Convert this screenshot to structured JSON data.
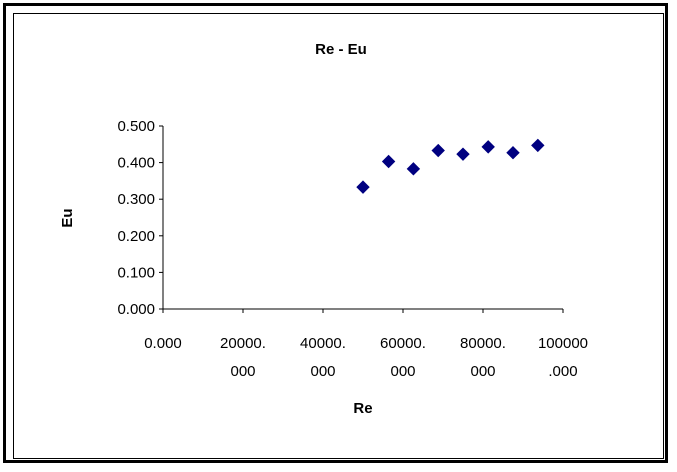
{
  "chart_data": {
    "type": "scatter",
    "title": "Re - Eu",
    "xlabel": "Re",
    "ylabel": "Eu",
    "xlim": [
      0,
      100000
    ],
    "ylim": [
      0,
      0.5
    ],
    "grid": false,
    "legend": "none",
    "marker": "diamond",
    "marker_color": "#000080",
    "x_ticks": [
      {
        "value": 0,
        "line1": "0.000",
        "line2": ""
      },
      {
        "value": 20000,
        "line1": "20000.",
        "line2": "000"
      },
      {
        "value": 40000,
        "line1": "40000.",
        "line2": "000"
      },
      {
        "value": 60000,
        "line1": "60000.",
        "line2": "000"
      },
      {
        "value": 80000,
        "line1": "80000.",
        "line2": "000"
      },
      {
        "value": 100000,
        "line1": "100000",
        "line2": ".000"
      }
    ],
    "y_ticks": [
      {
        "value": 0,
        "label": "0.000"
      },
      {
        "value": 0.1,
        "label": "0.100"
      },
      {
        "value": 0.2,
        "label": "0.200"
      },
      {
        "value": 0.3,
        "label": "0.300"
      },
      {
        "value": 0.4,
        "label": "0.400"
      },
      {
        "value": 0.5,
        "label": "0.500"
      }
    ],
    "points": [
      {
        "x": 50000,
        "y": 0.333
      },
      {
        "x": 56400,
        "y": 0.403
      },
      {
        "x": 62600,
        "y": 0.383
      },
      {
        "x": 68800,
        "y": 0.433
      },
      {
        "x": 75000,
        "y": 0.423
      },
      {
        "x": 81300,
        "y": 0.443
      },
      {
        "x": 87500,
        "y": 0.427
      },
      {
        "x": 93700,
        "y": 0.447
      }
    ]
  }
}
